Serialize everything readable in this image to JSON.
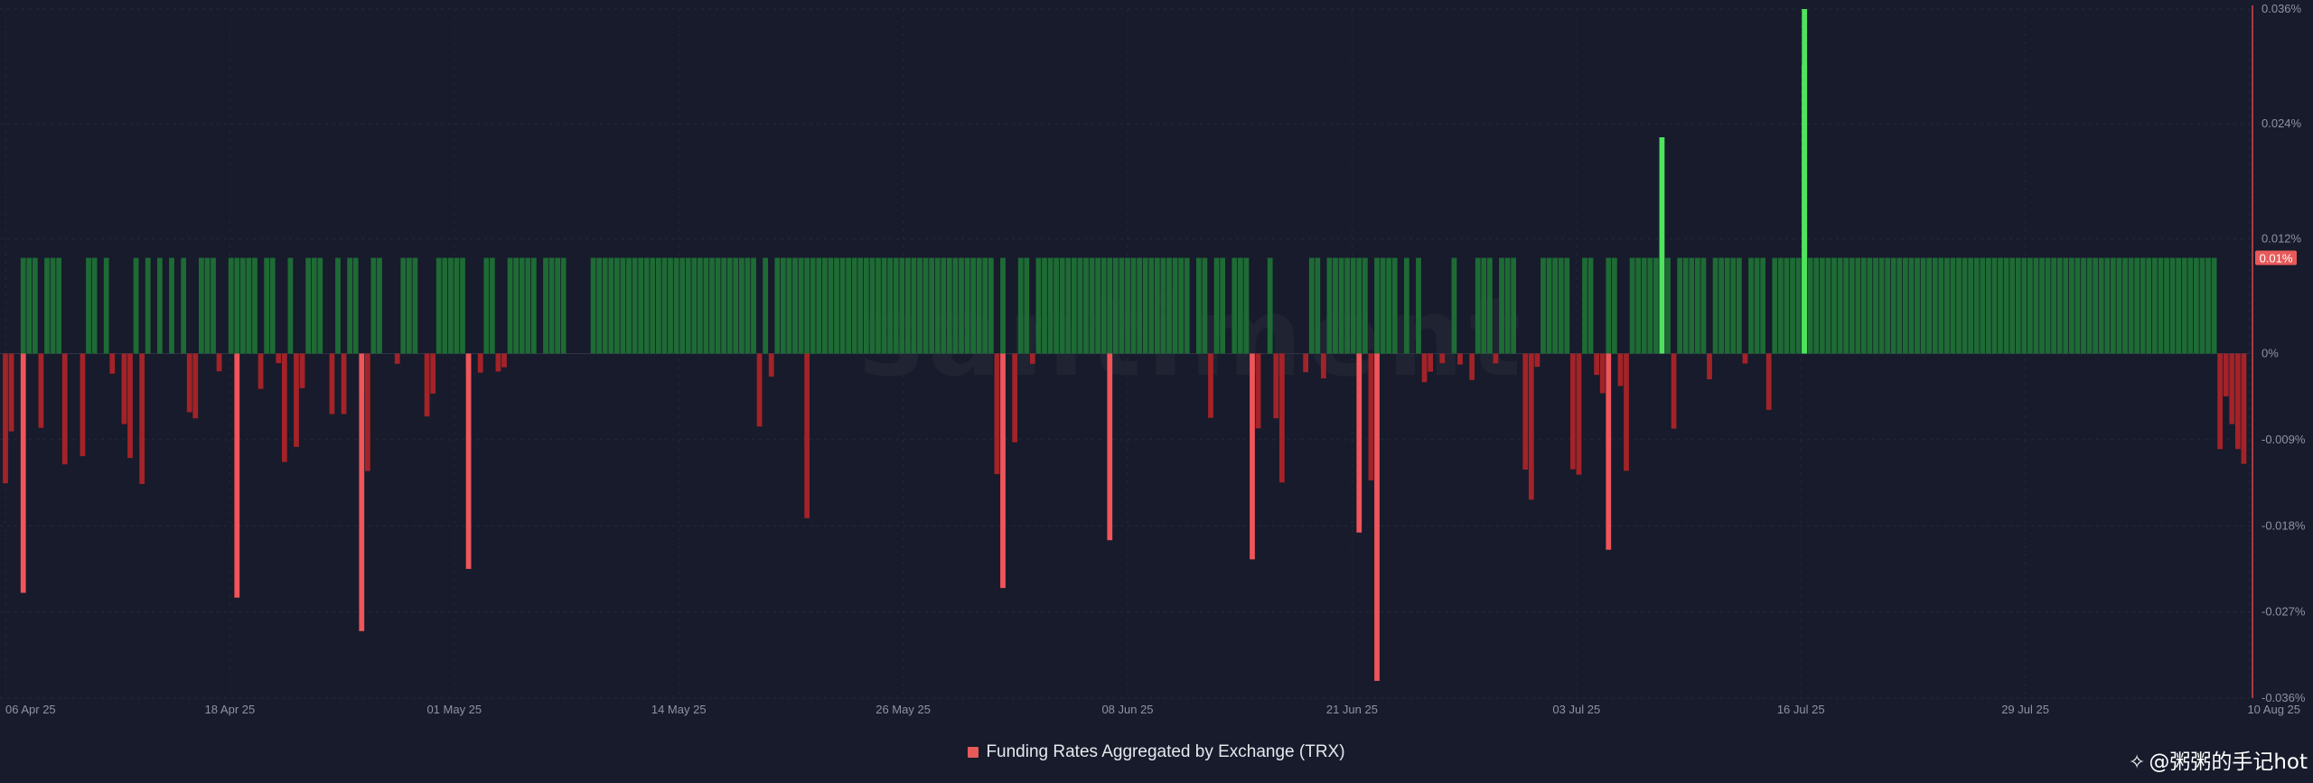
{
  "watermark": "santiment",
  "signature": "@粥粥的手记hot",
  "colors": {
    "background": "#171b2b",
    "positive": "#1e6b35",
    "positive_spike": "#4ee45e",
    "negative": "#a32328",
    "negative_spike": "#f0555a",
    "axis_line": "#d9464d",
    "current_badge": "#e85a5a"
  },
  "chart_data": {
    "type": "bar",
    "title": "",
    "series": [
      {
        "name": "Funding Rates Aggregated by Exchange (TRX)"
      }
    ],
    "legend_label": "Funding Rates Aggregated by Exchange (TRX)",
    "legend_position": "bottom-center",
    "x_range": [
      "2025-04-06",
      "2025-08-10"
    ],
    "x_ticks": [
      "06 Apr 25",
      "18 Apr 25",
      "01 May 25",
      "14 May 25",
      "26 May 25",
      "08 Jun 25",
      "21 Jun 25",
      "03 Jul 25",
      "16 Jul 25",
      "29 Jul 25",
      "10 Aug 25"
    ],
    "ylim": [
      -0.036,
      0.036
    ],
    "y_ticks": [
      "0.036%",
      "0.024%",
      "0.012%",
      "0%",
      "-0.009%",
      "-0.018%",
      "-0.027%",
      "-0.036%"
    ],
    "y_tick_values": [
      0.036,
      0.024,
      0.012,
      0,
      -0.009,
      -0.018,
      -0.027,
      -0.036
    ],
    "current_value_label": "0.01%",
    "current_value": 0.01,
    "typical_positive_rate": 0.01,
    "grid": true,
    "notable_points": [
      {
        "date": "2025-04-07",
        "value": -0.025
      },
      {
        "date": "2025-04-19",
        "value": -0.0255
      },
      {
        "date": "2025-04-26",
        "value": -0.029
      },
      {
        "date": "2025-05-02",
        "value": -0.0225
      },
      {
        "date": "2025-05-21",
        "value": -0.0172
      },
      {
        "date": "2025-06-01",
        "value": -0.0245
      },
      {
        "date": "2025-06-07",
        "value": -0.0195
      },
      {
        "date": "2025-06-15",
        "value": -0.0215
      },
      {
        "date": "2025-06-21",
        "value": -0.0187
      },
      {
        "date": "2025-06-22",
        "value": -0.0342
      },
      {
        "date": "2025-07-05",
        "value": -0.0205
      },
      {
        "date": "2025-07-08",
        "value": 0.0226
      },
      {
        "date": "2025-07-16",
        "value": 0.036
      },
      {
        "date": "2025-07-16",
        "value": 0.03
      },
      {
        "date": "2025-07-16",
        "value": 0.0302
      }
    ]
  }
}
